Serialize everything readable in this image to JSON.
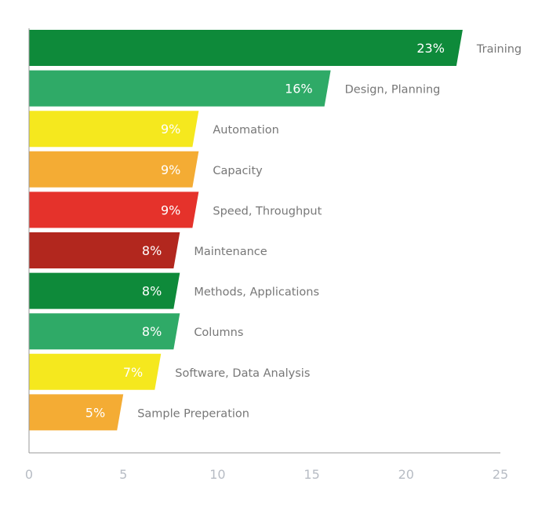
{
  "chart_data": {
    "type": "bar",
    "orientation": "horizontal",
    "title": "",
    "xlabel": "",
    "ylabel": "",
    "xlim": [
      0,
      25
    ],
    "x_ticks": [
      0,
      5,
      10,
      15,
      20,
      25
    ],
    "grid": false,
    "categories": [
      "Training",
      "Design, Planning",
      "Automation",
      "Capacity",
      "Speed, Throughput",
      "Maintenance",
      "Methods, Applications",
      "Columns",
      "Software, Data Analysis",
      "Sample Preperation"
    ],
    "values": [
      23,
      16,
      9,
      9,
      9,
      8,
      8,
      8,
      7,
      5
    ],
    "data_labels": [
      "23%",
      "16%",
      "9%",
      "9%",
      "9%",
      "8%",
      "8%",
      "8%",
      "7%",
      "5%"
    ],
    "colors": [
      "#0e8a3a",
      "#2faa67",
      "#f5e81e",
      "#f4ac34",
      "#e5322b",
      "#b2271e",
      "#0e8a3a",
      "#2faa67",
      "#f5e81e",
      "#f4ac34"
    ]
  }
}
